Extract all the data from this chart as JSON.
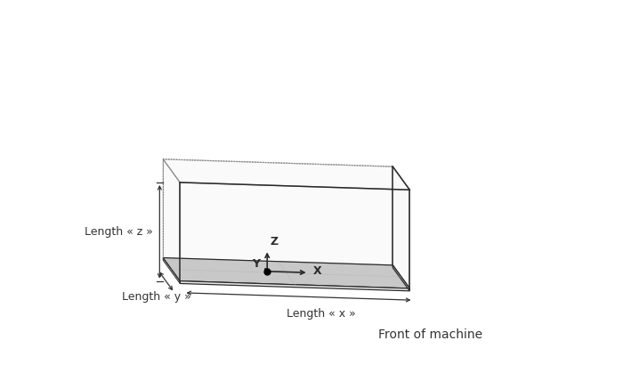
{
  "bg_color": "#ffffff",
  "box_edge_color": "#2a2a2a",
  "plate_top_color": "#c8c8c8",
  "plate_side_front_color": "#e8e8e8",
  "plate_side_right_color": "#dcdcdc",
  "wall_color": "#f2f2f2",
  "wall_alpha": 0.25,
  "dotted_color": "#888888",
  "axis_color": "#111111",
  "text_color": "#333333",
  "label_z": "Length « z »",
  "label_x": "Length « x »",
  "label_y": "Length « y »",
  "label_front": "Front of machine",
  "axis_label_x": "X",
  "axis_label_y": "Y",
  "axis_label_z": "Z",
  "figsize": [
    7.0,
    4.19
  ],
  "dpi": 100
}
